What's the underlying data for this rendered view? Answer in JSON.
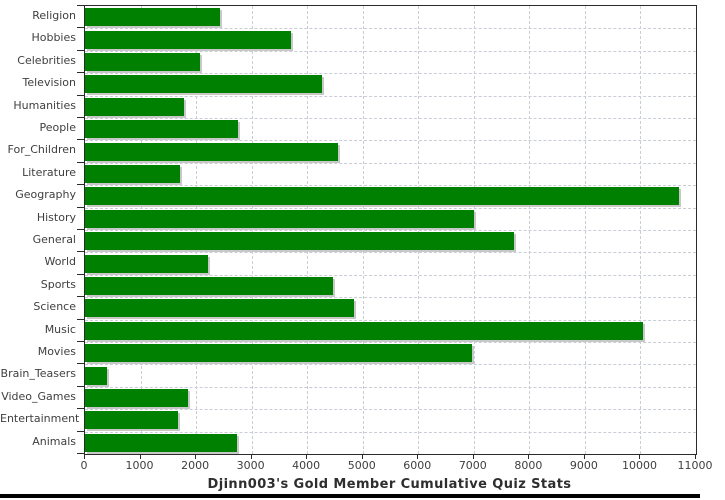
{
  "title": "Djinn003's Gold Member Cumulative Quiz Stats",
  "colors": {
    "bar": "#008000",
    "bar_shadow": "#c8c8c8",
    "gridline": "#c9ced6",
    "axis_border": "#2b2b2b",
    "tick_label": "#3f3f3f",
    "title_text": "#2e2e2e",
    "bottom_strip": "#000000"
  },
  "chart_data": {
    "type": "bar",
    "orientation": "horizontal",
    "title": "Djinn003's Gold Member Cumulative Quiz Stats",
    "categories": [
      "Religion",
      "Hobbies",
      "Celebrities",
      "Television",
      "Humanities",
      "People",
      "For_Children",
      "Literature",
      "Geography",
      "History",
      "General",
      "World",
      "Sports",
      "Science",
      "Music",
      "Movies",
      "Brain_Teasers",
      "Video_Games",
      "Entertainment",
      "Animals"
    ],
    "values": [
      2430,
      3700,
      2070,
      4260,
      1780,
      2750,
      4550,
      1710,
      10700,
      7000,
      7720,
      2210,
      4460,
      4840,
      10040,
      6960,
      400,
      1850,
      1670,
      2740
    ],
    "xlabel": "",
    "ylabel": "",
    "xlim": [
      0,
      11000
    ],
    "x_ticks": [
      0,
      1000,
      2000,
      3000,
      4000,
      5000,
      6000,
      7000,
      8000,
      9000,
      10000,
      11000
    ],
    "grid": true,
    "legend": false
  }
}
